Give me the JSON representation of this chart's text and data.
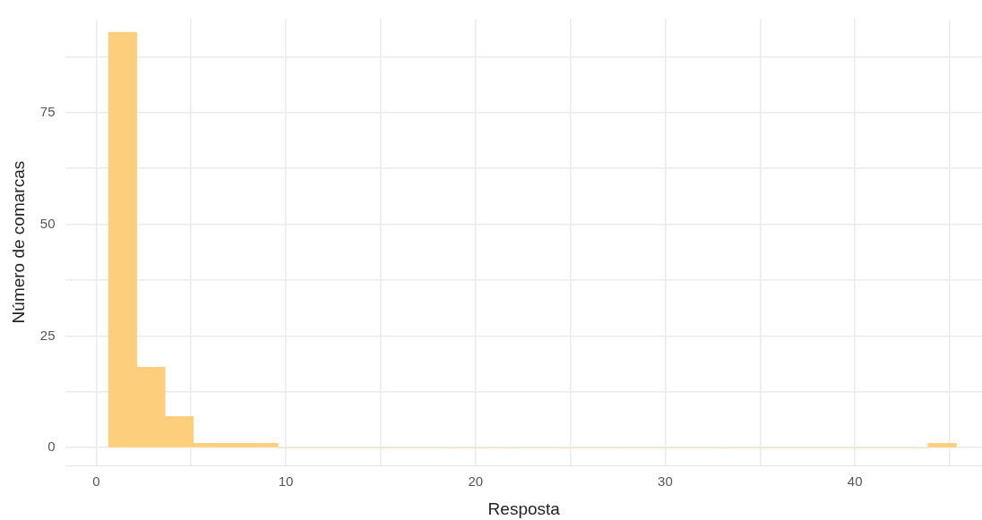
{
  "chart_data": {
    "type": "histogram",
    "xlabel": "Resposta",
    "ylabel": "Número de comarcas",
    "bins": [
      0.65,
      2.14,
      3.63,
      5.12,
      6.61,
      8.1,
      9.59,
      11.08,
      12.57,
      14.06,
      15.55,
      17.04,
      18.53,
      20.02,
      21.51,
      23,
      24.49,
      25.98,
      27.47,
      28.96,
      30.45,
      31.94,
      33.43,
      34.92,
      36.41,
      37.9,
      39.39,
      40.88,
      42.37,
      43.86,
      45.35
    ],
    "values": [
      93,
      18,
      7,
      1,
      1,
      1,
      0,
      0,
      0,
      0,
      0,
      0,
      0,
      0,
      0,
      0,
      0,
      0,
      0,
      0,
      0,
      0,
      0,
      0,
      0,
      0,
      0,
      0,
      0,
      1
    ],
    "color": "#fdcf7c",
    "xlim": [
      -1.6,
      46.7
    ],
    "ylim": [
      -4,
      96
    ],
    "xticks": [
      0,
      {
        "value": 5,
        "label": null
      },
      10,
      {
        "value": 15,
        "label": null
      },
      20,
      {
        "value": 25,
        "label": null
      },
      30,
      {
        "value": 35,
        "label": null
      },
      40,
      {
        "value": 45,
        "label": null
      }
    ],
    "yticks": [
      0,
      {
        "value": 12.5,
        "label": null
      },
      25,
      {
        "value": 37.5,
        "label": null
      },
      50,
      {
        "value": 62.5,
        "label": null
      },
      75,
      {
        "value": 87.5,
        "label": null
      }
    ],
    "grid": true,
    "legend": false
  }
}
